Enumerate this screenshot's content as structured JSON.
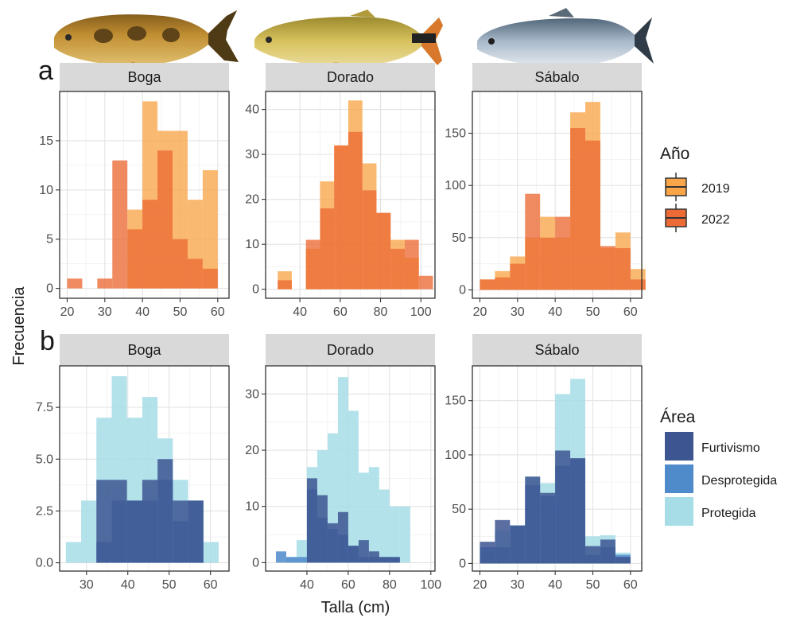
{
  "figure": {
    "panel_tags": [
      "a",
      "b"
    ],
    "y_axis_title": "Frecuencia",
    "x_axis_title": "Talla (cm)"
  },
  "legend_year": {
    "title": "Año",
    "items": [
      {
        "label": "2019",
        "color": "#F9A548"
      },
      {
        "label": "2022",
        "color": "#EC6A35"
      }
    ]
  },
  "legend_area": {
    "title": "Área",
    "items": [
      {
        "label": "Furtivismo",
        "color": "#3D5590"
      },
      {
        "label": "Desprotegida",
        "color": "#4F8ACB"
      },
      {
        "label": "Protegida",
        "color": "#A6DDE7"
      }
    ]
  },
  "fish": [
    {
      "species": "Boga",
      "icon": "boga-fish-icon",
      "body_color": "#B8832E"
    },
    {
      "species": "Dorado",
      "icon": "dorado-fish-icon",
      "body_color": "#C9B154"
    },
    {
      "species": "Sábalo",
      "icon": "sabalo-fish-icon",
      "body_color": "#9EAFC0"
    }
  ],
  "chart_data": [
    {
      "type": "bar",
      "row": "a",
      "facet": "Boga",
      "xticks": [
        20,
        30,
        40,
        50,
        60
      ],
      "xlim": [
        18,
        63
      ],
      "yticks": [
        0,
        5,
        10,
        15
      ],
      "ylim": [
        -1,
        20
      ],
      "bin_width": 4,
      "bins": [
        20,
        24,
        28,
        32,
        36,
        40,
        44,
        48,
        52,
        56,
        60
      ],
      "series": [
        {
          "name": "2019",
          "values": [
            0,
            0,
            0,
            0,
            8,
            19,
            16,
            16,
            9,
            12,
            0
          ]
        },
        {
          "name": "2022",
          "values": [
            1,
            0,
            1,
            13,
            6,
            9,
            14,
            5,
            3,
            2,
            0
          ]
        }
      ]
    },
    {
      "type": "bar",
      "row": "a",
      "facet": "Dorado",
      "xticks": [
        40,
        60,
        80,
        100
      ],
      "xlim": [
        23,
        107
      ],
      "yticks": [
        0,
        10,
        20,
        30,
        40
      ],
      "ylim": [
        -2,
        44
      ],
      "bin_width": 7,
      "bins": [
        29,
        36,
        43,
        50,
        57,
        64,
        71,
        78,
        85,
        92,
        99
      ],
      "series": [
        {
          "name": "2019",
          "values": [
            4,
            0,
            9,
            24,
            32,
            42,
            28,
            17,
            11,
            7,
            0
          ]
        },
        {
          "name": "2022",
          "values": [
            2,
            0,
            11,
            18,
            32,
            35,
            22,
            17,
            9,
            11,
            3
          ]
        }
      ]
    },
    {
      "type": "bar",
      "row": "a",
      "facet": "Sábalo",
      "xticks": [
        20,
        30,
        40,
        50,
        60
      ],
      "xlim": [
        18,
        63
      ],
      "yticks": [
        0,
        50,
        100,
        150
      ],
      "ylim": [
        -8,
        190
      ],
      "bin_width": 4,
      "bins": [
        20,
        24,
        28,
        32,
        36,
        40,
        44,
        48,
        52,
        56,
        60
      ],
      "series": [
        {
          "name": "2019",
          "values": [
            10,
            18,
            32,
            50,
            70,
            50,
            170,
            180,
            40,
            55,
            20
          ]
        },
        {
          "name": "2022",
          "values": [
            10,
            12,
            25,
            92,
            50,
            70,
            155,
            143,
            42,
            40,
            10
          ]
        }
      ]
    },
    {
      "type": "bar",
      "row": "b",
      "facet": "Boga",
      "xticks": [
        30,
        40,
        50,
        60
      ],
      "xlim": [
        23.5,
        64.5
      ],
      "yticks": [
        0,
        2.5,
        5,
        7.5
      ],
      "yticklabels": [
        "0.0",
        "2.5",
        "5.0",
        "7.5"
      ],
      "ylim": [
        -0.4,
        9.5
      ],
      "bin_width": 3.7,
      "bins": [
        25,
        28.7,
        32.4,
        36.1,
        39.8,
        43.5,
        47.2,
        50.9,
        54.6,
        58.3,
        62
      ],
      "series": [
        {
          "name": "Protegida",
          "values": [
            1,
            3,
            7,
            9,
            7,
            8,
            6,
            4,
            3,
            1,
            0
          ]
        },
        {
          "name": "Desprotegida",
          "values": [
            0,
            0,
            1,
            3,
            3,
            3,
            4,
            2,
            3,
            0,
            0
          ]
        },
        {
          "name": "Furtivismo",
          "values": [
            0,
            0,
            4,
            4,
            3,
            4,
            5,
            3,
            3,
            0,
            0
          ]
        }
      ]
    },
    {
      "type": "bar",
      "row": "b",
      "facet": "Dorado",
      "xticks": [
        40,
        60,
        80,
        100
      ],
      "xlim": [
        20,
        102
      ],
      "yticks": [
        0,
        10,
        20,
        30
      ],
      "ylim": [
        -1.5,
        35
      ],
      "bin_width": 5,
      "bins": [
        25,
        30,
        35,
        40,
        45,
        50,
        55,
        60,
        65,
        70,
        75,
        80,
        85,
        90,
        95
      ],
      "series": [
        {
          "name": "Protegida",
          "values": [
            0,
            1,
            4,
            17,
            20,
            23,
            33,
            27,
            16,
            17,
            13,
            10,
            10,
            0,
            0
          ]
        },
        {
          "name": "Desprotegida",
          "values": [
            2,
            1,
            1,
            13,
            8,
            6,
            5,
            3,
            1,
            1,
            1,
            1,
            0,
            0,
            0
          ]
        },
        {
          "name": "Furtivismo",
          "values": [
            0,
            0,
            0,
            15,
            12,
            7,
            9,
            3,
            4,
            2,
            1,
            1,
            0,
            0,
            0
          ]
        }
      ]
    },
    {
      "type": "bar",
      "row": "b",
      "facet": "Sábalo",
      "xticks": [
        20,
        30,
        40,
        50,
        60
      ],
      "xlim": [
        18,
        63
      ],
      "yticks": [
        0,
        50,
        100,
        150
      ],
      "ylim": [
        -7,
        182
      ],
      "bin_width": 4,
      "bins": [
        20,
        24,
        28,
        32,
        36,
        40,
        44,
        48,
        52,
        56,
        60
      ],
      "series": [
        {
          "name": "Protegida",
          "values": [
            10,
            30,
            35,
            80,
            74,
            156,
            170,
            25,
            26,
            10,
            0
          ]
        },
        {
          "name": "Desprotegida",
          "values": [
            15,
            15,
            35,
            72,
            62,
            90,
            96,
            8,
            15,
            8,
            0
          ]
        },
        {
          "name": "Furtivismo",
          "values": [
            20,
            40,
            35,
            80,
            65,
            104,
            97,
            16,
            22,
            6,
            0
          ]
        }
      ]
    }
  ]
}
